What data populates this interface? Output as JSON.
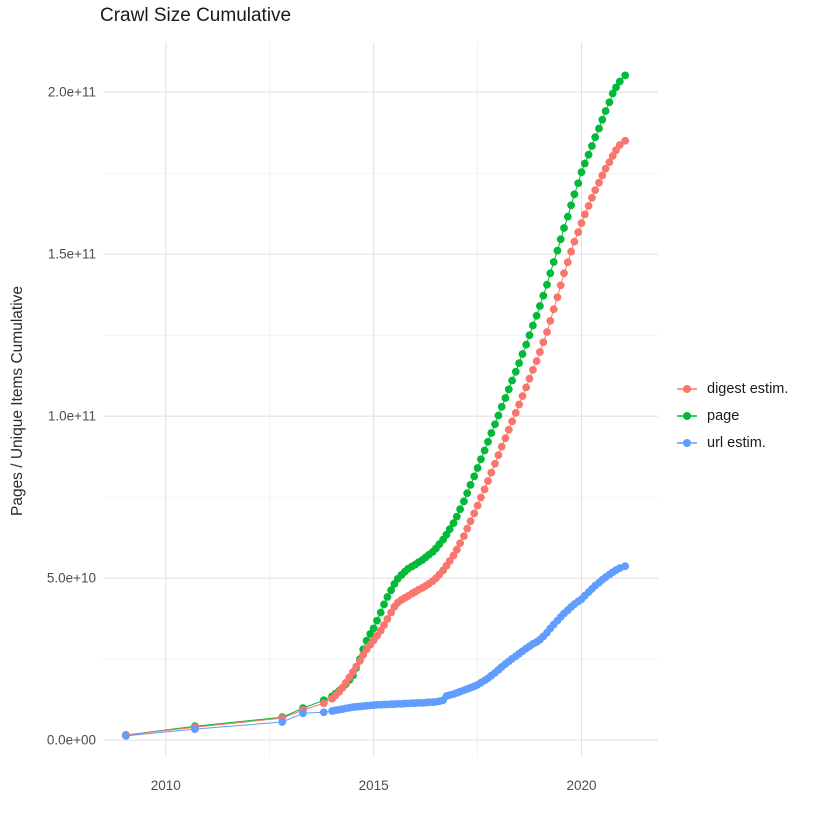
{
  "chart_data": {
    "type": "scatter",
    "title": "Crawl Size Cumulative",
    "xlabel": "",
    "ylabel": "Pages / Unique Items Cumulative",
    "value_unit": 1000000000.0,
    "grid": "on",
    "legend_position": "right-center",
    "axes": {
      "xlim": [
        2008.49,
        2021.84
      ],
      "ylim_e9": [
        -5.2,
        215.5
      ],
      "x_ticks": [
        {
          "v": 2010,
          "label": "2010"
        },
        {
          "v": 2015,
          "label": "2015"
        },
        {
          "v": 2020,
          "label": "2020"
        }
      ],
      "x_minor": [
        2012.5,
        2017.5
      ],
      "y_ticks": [
        {
          "v": 0,
          "label": "0.0e+00"
        },
        {
          "v": 50,
          "label": "5.0e+10"
        },
        {
          "v": 100,
          "label": "1.0e+11"
        },
        {
          "v": 150,
          "label": "1.5e+11"
        },
        {
          "v": 200,
          "label": "2.0e+11"
        }
      ],
      "y_minor": [
        25,
        75,
        125,
        175
      ]
    },
    "colors": {
      "grid_major": "#e3e3e3",
      "grid_minor": "#ededed",
      "tick_text": "#4d4d4d",
      "title_text": "#1a1a1a"
    },
    "series": [
      {
        "name": "digest estim.",
        "color": "#F8766D",
        "points_e9": [
          [
            2009.04,
            1.6
          ],
          [
            2010.7,
            4.0
          ],
          [
            2012.8,
            6.8
          ],
          [
            2013.3,
            9.3
          ],
          [
            2013.8,
            11.4
          ],
          [
            2014.0,
            12.8
          ],
          [
            2014.08,
            13.8
          ],
          [
            2014.17,
            14.9
          ],
          [
            2014.25,
            16.2
          ],
          [
            2014.33,
            17.7
          ],
          [
            2014.42,
            19.4
          ],
          [
            2014.5,
            21.0
          ],
          [
            2014.58,
            22.7
          ],
          [
            2014.67,
            24.5
          ],
          [
            2014.75,
            26.3
          ],
          [
            2014.83,
            28.0
          ],
          [
            2014.92,
            29.5
          ],
          [
            2015.0,
            30.8
          ],
          [
            2015.08,
            32.2
          ],
          [
            2015.17,
            33.8
          ],
          [
            2015.25,
            35.5
          ],
          [
            2015.33,
            37.4
          ],
          [
            2015.42,
            39.4
          ],
          [
            2015.5,
            41.2
          ],
          [
            2015.58,
            42.5
          ],
          [
            2015.67,
            43.3
          ],
          [
            2015.75,
            43.9
          ],
          [
            2015.83,
            44.5
          ],
          [
            2015.92,
            45.2
          ],
          [
            2016.0,
            45.8
          ],
          [
            2016.08,
            46.4
          ],
          [
            2016.17,
            47.0
          ],
          [
            2016.25,
            47.6
          ],
          [
            2016.33,
            48.3
          ],
          [
            2016.42,
            49.1
          ],
          [
            2016.5,
            50.0
          ],
          [
            2016.58,
            51.1
          ],
          [
            2016.67,
            52.4
          ],
          [
            2016.75,
            53.8
          ],
          [
            2016.83,
            55.3
          ],
          [
            2016.92,
            57.0
          ],
          [
            2017.0,
            58.8
          ],
          [
            2017.08,
            60.8
          ],
          [
            2017.17,
            63.0
          ],
          [
            2017.25,
            65.3
          ],
          [
            2017.33,
            67.6
          ],
          [
            2017.42,
            70.0
          ],
          [
            2017.5,
            72.4
          ],
          [
            2017.58,
            74.9
          ],
          [
            2017.67,
            77.4
          ],
          [
            2017.75,
            80.0
          ],
          [
            2017.83,
            82.6
          ],
          [
            2017.92,
            85.3
          ],
          [
            2018.0,
            88.0
          ],
          [
            2018.08,
            90.6
          ],
          [
            2018.17,
            93.2
          ],
          [
            2018.25,
            95.8
          ],
          [
            2018.33,
            98.4
          ],
          [
            2018.42,
            101.0
          ],
          [
            2018.5,
            103.6
          ],
          [
            2018.58,
            106.2
          ],
          [
            2018.67,
            108.9
          ],
          [
            2018.75,
            111.6
          ],
          [
            2018.83,
            114.3
          ],
          [
            2018.92,
            117.0
          ],
          [
            2019.0,
            119.8
          ],
          [
            2019.08,
            122.8
          ],
          [
            2019.17,
            126.0
          ],
          [
            2019.25,
            129.4
          ],
          [
            2019.33,
            133.0
          ],
          [
            2019.42,
            136.7
          ],
          [
            2019.5,
            140.4
          ],
          [
            2019.58,
            144.1
          ],
          [
            2019.67,
            147.5
          ],
          [
            2019.75,
            150.8
          ],
          [
            2019.83,
            153.9
          ],
          [
            2019.92,
            156.8
          ],
          [
            2020.0,
            159.6
          ],
          [
            2020.08,
            162.3
          ],
          [
            2020.17,
            164.9
          ],
          [
            2020.25,
            167.4
          ],
          [
            2020.33,
            169.8
          ],
          [
            2020.42,
            172.1
          ],
          [
            2020.5,
            174.3
          ],
          [
            2020.58,
            176.4
          ],
          [
            2020.67,
            178.4
          ],
          [
            2020.75,
            180.3
          ],
          [
            2020.83,
            182.1
          ],
          [
            2020.92,
            183.7
          ],
          [
            2021.05,
            185.0
          ]
        ]
      },
      {
        "name": "page",
        "color": "#00BA38",
        "points_e9": [
          [
            2009.04,
            1.6
          ],
          [
            2010.7,
            4.3
          ],
          [
            2012.8,
            7.1
          ],
          [
            2013.3,
            9.9
          ],
          [
            2013.8,
            12.3
          ],
          [
            2014.0,
            13.5
          ],
          [
            2014.08,
            14.3
          ],
          [
            2014.17,
            15.2
          ],
          [
            2014.25,
            16.2
          ],
          [
            2014.33,
            17.3
          ],
          [
            2014.42,
            18.6
          ],
          [
            2014.5,
            20.0
          ],
          [
            2014.58,
            22.3
          ],
          [
            2014.67,
            25.0
          ],
          [
            2014.75,
            28.0
          ],
          [
            2014.83,
            30.7
          ],
          [
            2014.92,
            32.8
          ],
          [
            2015.0,
            34.5
          ],
          [
            2015.08,
            36.9
          ],
          [
            2015.17,
            39.4
          ],
          [
            2015.25,
            41.9
          ],
          [
            2015.33,
            44.2
          ],
          [
            2015.42,
            46.3
          ],
          [
            2015.5,
            48.2
          ],
          [
            2015.58,
            49.8
          ],
          [
            2015.67,
            51.0
          ],
          [
            2015.75,
            52.0
          ],
          [
            2015.83,
            52.9
          ],
          [
            2015.92,
            53.6
          ],
          [
            2016.0,
            54.2
          ],
          [
            2016.08,
            54.9
          ],
          [
            2016.17,
            55.6
          ],
          [
            2016.25,
            56.4
          ],
          [
            2016.33,
            57.2
          ],
          [
            2016.42,
            58.1
          ],
          [
            2016.5,
            59.2
          ],
          [
            2016.58,
            60.5
          ],
          [
            2016.67,
            61.9
          ],
          [
            2016.75,
            63.4
          ],
          [
            2016.83,
            65.1
          ],
          [
            2016.92,
            67.0
          ],
          [
            2017.0,
            69.0
          ],
          [
            2017.08,
            71.3
          ],
          [
            2017.17,
            73.7
          ],
          [
            2017.25,
            76.2
          ],
          [
            2017.33,
            78.8
          ],
          [
            2017.42,
            81.4
          ],
          [
            2017.5,
            84.0
          ],
          [
            2017.58,
            86.7
          ],
          [
            2017.67,
            89.4
          ],
          [
            2017.75,
            92.1
          ],
          [
            2017.83,
            94.8
          ],
          [
            2017.92,
            97.5
          ],
          [
            2018.0,
            100.2
          ],
          [
            2018.08,
            102.9
          ],
          [
            2018.17,
            105.6
          ],
          [
            2018.25,
            108.3
          ],
          [
            2018.33,
            111.0
          ],
          [
            2018.42,
            113.7
          ],
          [
            2018.5,
            116.4
          ],
          [
            2018.58,
            119.2
          ],
          [
            2018.67,
            122.1
          ],
          [
            2018.75,
            125.0
          ],
          [
            2018.83,
            128.0
          ],
          [
            2018.92,
            131.0
          ],
          [
            2019.0,
            134.0
          ],
          [
            2019.08,
            137.2
          ],
          [
            2019.17,
            140.6
          ],
          [
            2019.25,
            144.1
          ],
          [
            2019.33,
            147.6
          ],
          [
            2019.42,
            151.1
          ],
          [
            2019.5,
            154.6
          ],
          [
            2019.58,
            158.1
          ],
          [
            2019.67,
            161.6
          ],
          [
            2019.75,
            165.1
          ],
          [
            2019.83,
            168.5
          ],
          [
            2019.92,
            171.9
          ],
          [
            2020.0,
            175.3
          ],
          [
            2020.08,
            178.0
          ],
          [
            2020.17,
            180.7
          ],
          [
            2020.25,
            183.4
          ],
          [
            2020.33,
            186.1
          ],
          [
            2020.42,
            188.8
          ],
          [
            2020.5,
            191.5
          ],
          [
            2020.58,
            194.2
          ],
          [
            2020.67,
            196.9
          ],
          [
            2020.75,
            199.6
          ],
          [
            2020.83,
            201.5
          ],
          [
            2020.92,
            203.3
          ],
          [
            2021.05,
            205.2
          ]
        ]
      },
      {
        "name": "url estim.",
        "color": "#619CFF",
        "points_e9": [
          [
            2009.04,
            1.3
          ],
          [
            2010.7,
            3.4
          ],
          [
            2012.8,
            5.6
          ],
          [
            2013.3,
            8.3
          ],
          [
            2013.8,
            8.6
          ],
          [
            2014.0,
            9.0
          ],
          [
            2014.08,
            9.2
          ],
          [
            2014.17,
            9.4
          ],
          [
            2014.25,
            9.6
          ],
          [
            2014.33,
            9.8
          ],
          [
            2014.42,
            10.0
          ],
          [
            2014.5,
            10.2
          ],
          [
            2014.58,
            10.3
          ],
          [
            2014.67,
            10.4
          ],
          [
            2014.75,
            10.5
          ],
          [
            2014.83,
            10.6
          ],
          [
            2014.92,
            10.7
          ],
          [
            2015.0,
            10.8
          ],
          [
            2015.08,
            10.9
          ],
          [
            2015.17,
            10.9
          ],
          [
            2015.25,
            11.0
          ],
          [
            2015.33,
            11.0
          ],
          [
            2015.42,
            11.1
          ],
          [
            2015.5,
            11.1
          ],
          [
            2015.58,
            11.2
          ],
          [
            2015.67,
            11.2
          ],
          [
            2015.75,
            11.3
          ],
          [
            2015.83,
            11.3
          ],
          [
            2015.92,
            11.4
          ],
          [
            2016.0,
            11.4
          ],
          [
            2016.08,
            11.5
          ],
          [
            2016.17,
            11.5
          ],
          [
            2016.25,
            11.6
          ],
          [
            2016.33,
            11.7
          ],
          [
            2016.42,
            11.7
          ],
          [
            2016.5,
            11.8
          ],
          [
            2016.58,
            12.0
          ],
          [
            2016.67,
            12.3
          ],
          [
            2016.75,
            13.6
          ],
          [
            2016.83,
            13.9
          ],
          [
            2016.92,
            14.2
          ],
          [
            2017.0,
            14.6
          ],
          [
            2017.08,
            15.0
          ],
          [
            2017.17,
            15.4
          ],
          [
            2017.25,
            15.8
          ],
          [
            2017.33,
            16.2
          ],
          [
            2017.42,
            16.6
          ],
          [
            2017.5,
            17.1
          ],
          [
            2017.58,
            17.7
          ],
          [
            2017.67,
            18.4
          ],
          [
            2017.75,
            19.1
          ],
          [
            2017.83,
            19.9
          ],
          [
            2017.92,
            20.8
          ],
          [
            2018.0,
            21.7
          ],
          [
            2018.08,
            22.6
          ],
          [
            2018.17,
            23.5
          ],
          [
            2018.25,
            24.3
          ],
          [
            2018.33,
            25.1
          ],
          [
            2018.42,
            25.9
          ],
          [
            2018.5,
            26.7
          ],
          [
            2018.58,
            27.5
          ],
          [
            2018.67,
            28.3
          ],
          [
            2018.75,
            29.0
          ],
          [
            2018.83,
            29.7
          ],
          [
            2018.92,
            30.3
          ],
          [
            2019.0,
            31.0
          ],
          [
            2019.08,
            32.0
          ],
          [
            2019.17,
            33.2
          ],
          [
            2019.25,
            34.5
          ],
          [
            2019.33,
            35.7
          ],
          [
            2019.42,
            36.9
          ],
          [
            2019.5,
            38.0
          ],
          [
            2019.58,
            39.1
          ],
          [
            2019.67,
            40.1
          ],
          [
            2019.75,
            41.1
          ],
          [
            2019.83,
            42.0
          ],
          [
            2019.92,
            42.8
          ],
          [
            2020.0,
            43.5
          ],
          [
            2020.08,
            44.6
          ],
          [
            2020.17,
            45.7
          ],
          [
            2020.25,
            46.7
          ],
          [
            2020.33,
            47.7
          ],
          [
            2020.42,
            48.6
          ],
          [
            2020.5,
            49.5
          ],
          [
            2020.58,
            50.3
          ],
          [
            2020.67,
            51.1
          ],
          [
            2020.75,
            51.8
          ],
          [
            2020.83,
            52.5
          ],
          [
            2020.92,
            53.1
          ],
          [
            2021.05,
            53.7
          ]
        ]
      }
    ]
  }
}
